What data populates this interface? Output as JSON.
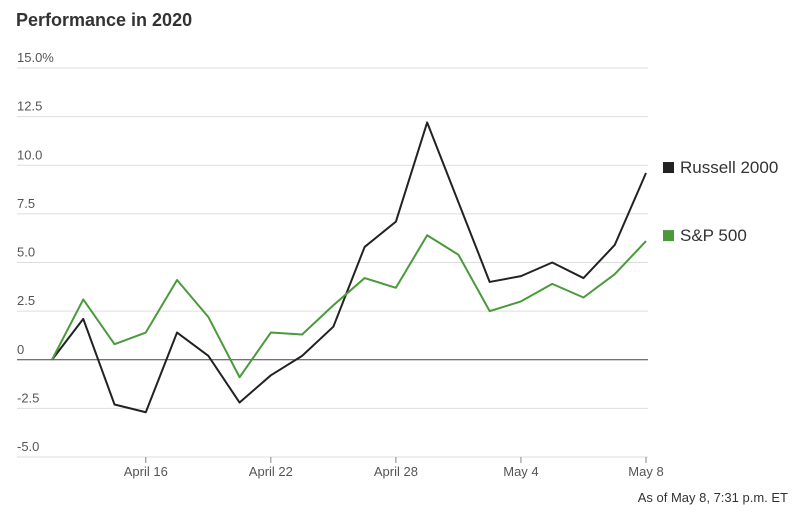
{
  "chart_data": {
    "type": "line",
    "title": "Performance in 2020",
    "note": "As of May 8, 7:31 p.m. ET",
    "categories": [
      null,
      null,
      null,
      "April 16",
      null,
      null,
      null,
      "April 22",
      null,
      null,
      null,
      "April 28",
      null,
      null,
      null,
      "May 4",
      null,
      null,
      null,
      "May 8"
    ],
    "series": [
      {
        "name": "Russell 2000",
        "color": "#222222",
        "values": [
          0,
          2.1,
          -2.3,
          -2.7,
          1.4,
          0.2,
          -2.2,
          -0.8,
          0.2,
          1.7,
          5.8,
          7.1,
          12.2,
          8.1,
          4.0,
          4.3,
          5.0,
          4.2,
          5.9,
          9.6
        ]
      },
      {
        "name": "S&P 500",
        "color": "#4a9a3c",
        "values": [
          0,
          3.1,
          0.8,
          1.4,
          4.1,
          2.2,
          -0.9,
          1.4,
          1.3,
          2.8,
          4.2,
          3.7,
          6.4,
          5.4,
          2.5,
          3.0,
          3.9,
          3.2,
          4.4,
          6.1
        ]
      }
    ],
    "ylim": [
      -5,
      15
    ],
    "yticks": [
      {
        "value": 15,
        "label": "15.0%"
      },
      12.5,
      {
        "value": 10,
        "label": "10.0"
      },
      7.5,
      {
        "value": 5,
        "label": "5.0"
      },
      2.5,
      0,
      -2.5,
      {
        "value": -5,
        "label": "-5.0"
      }
    ],
    "grid": true,
    "legend": "right"
  }
}
